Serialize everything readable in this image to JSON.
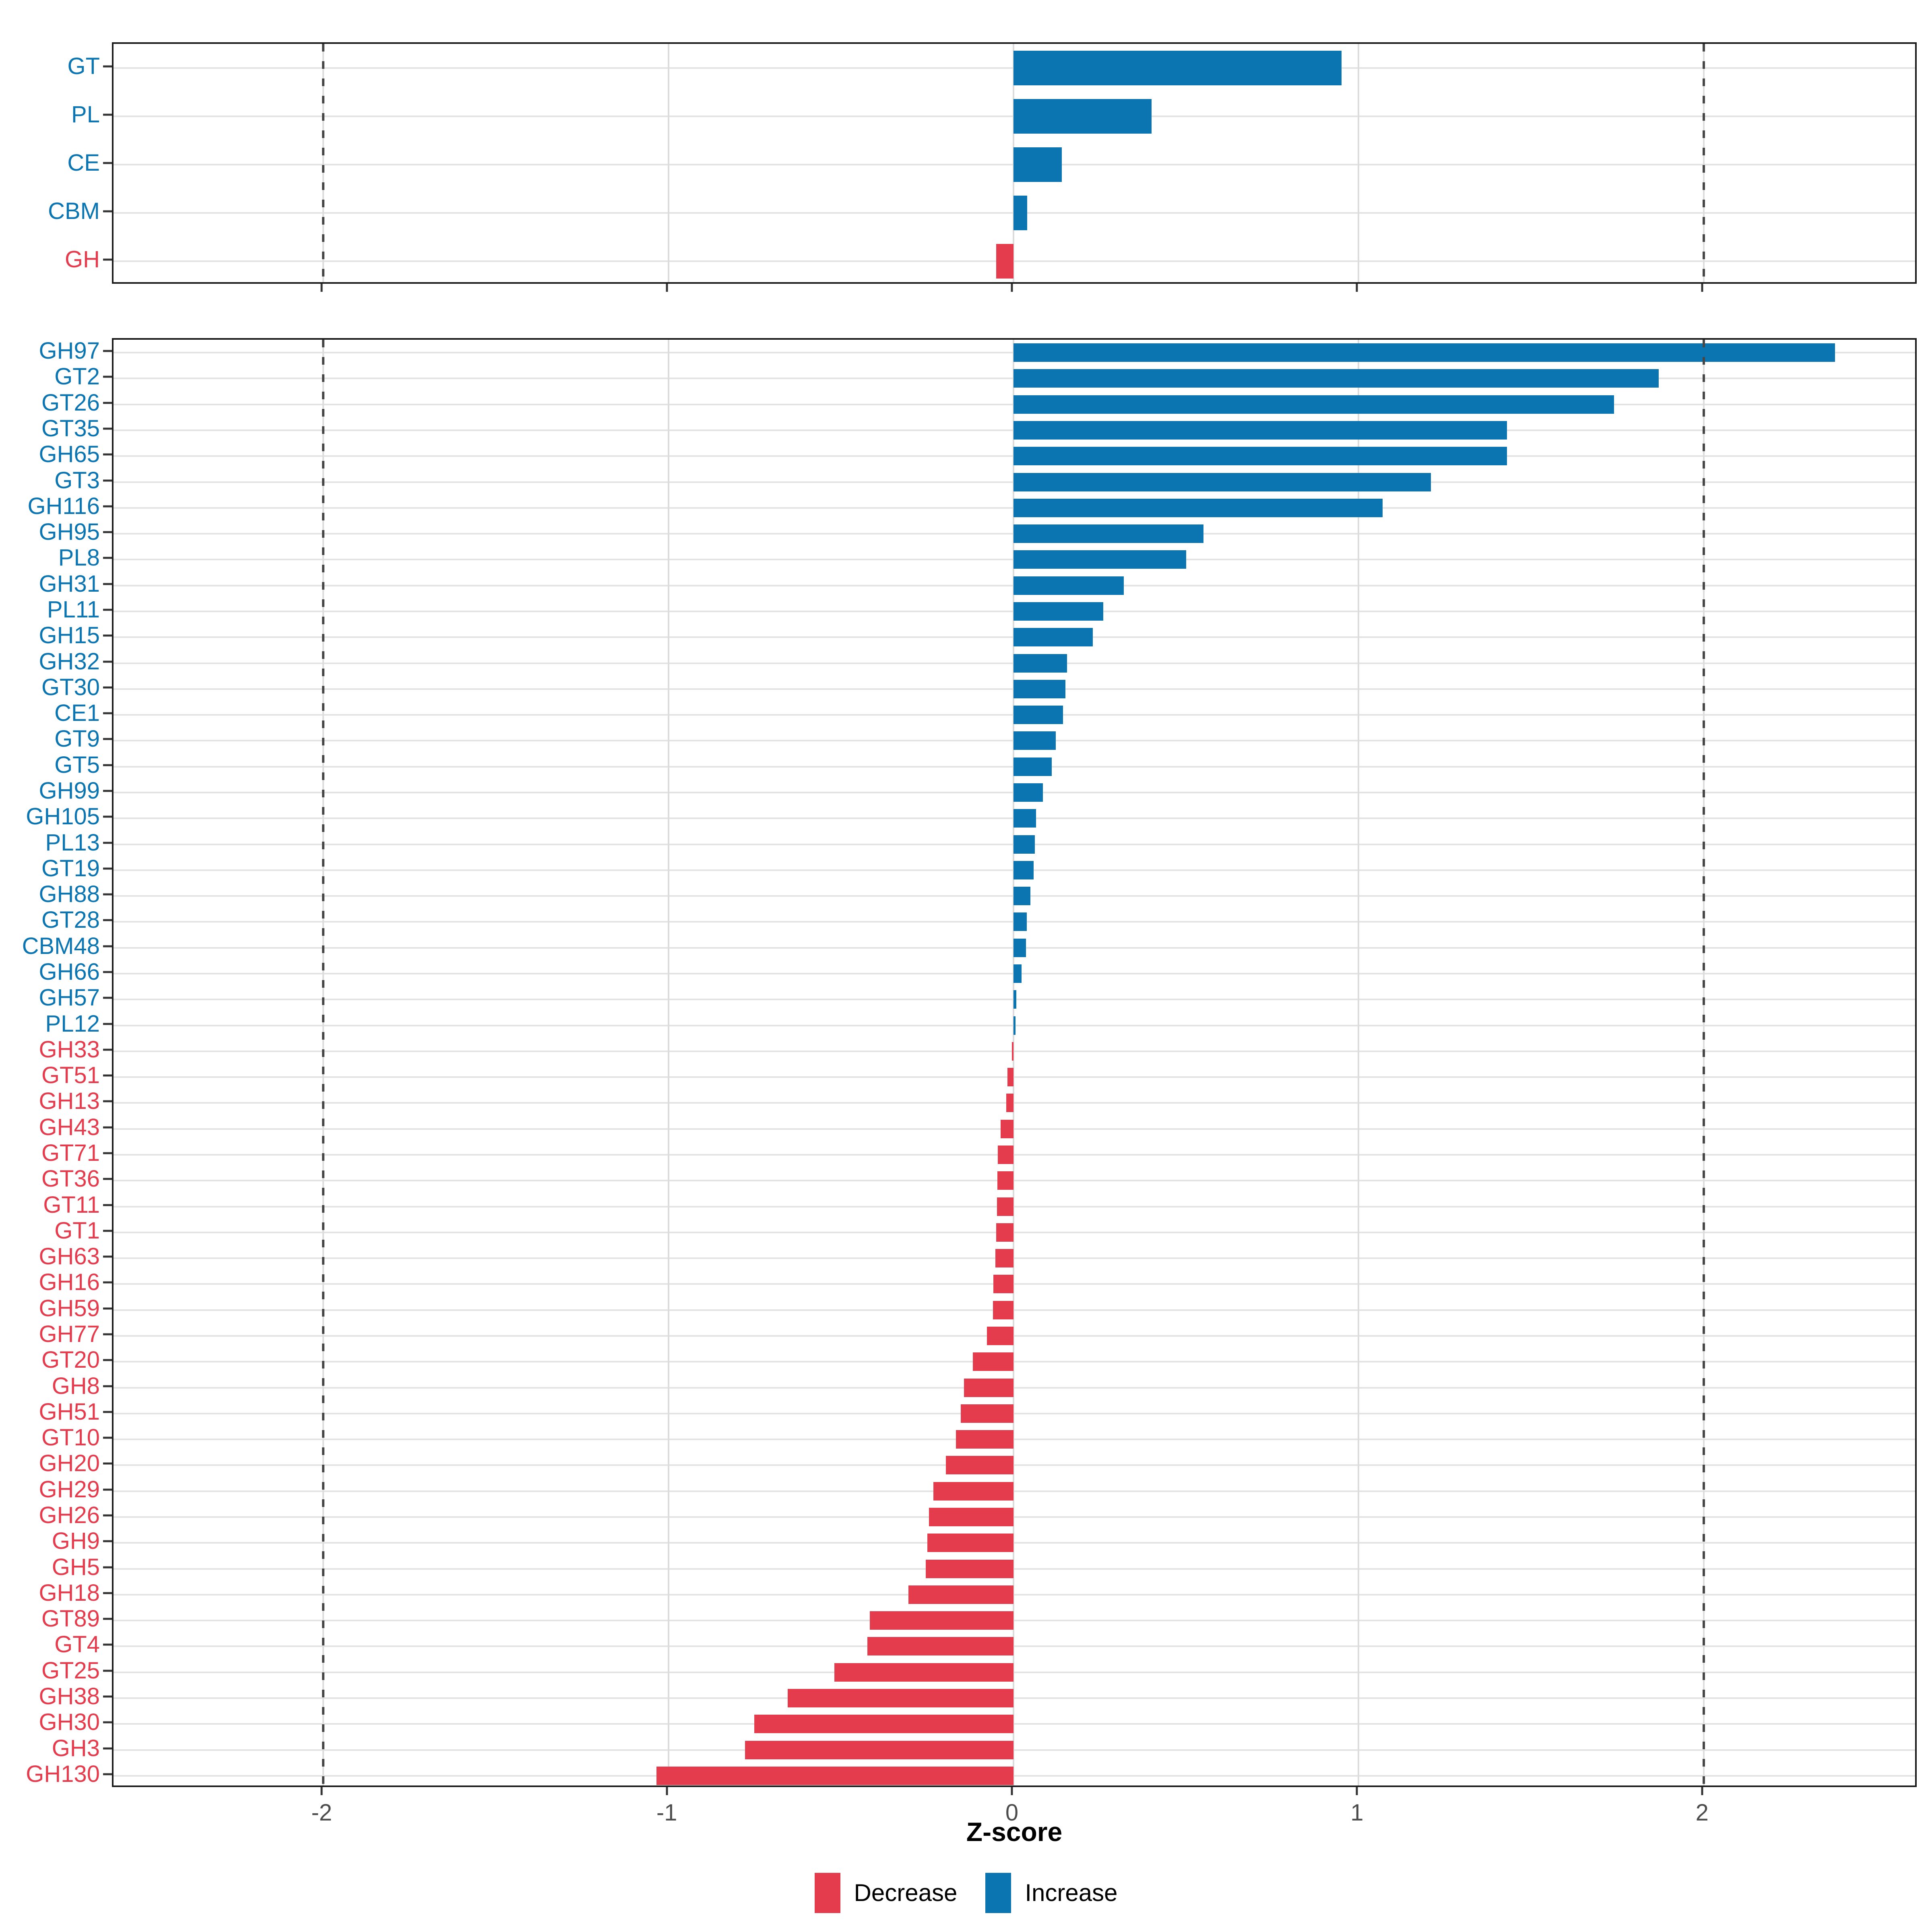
{
  "chart_data": {
    "type": "bar",
    "orientation": "horizontal",
    "xlabel": "Z-score",
    "x_ticks": [
      -2,
      -1,
      0,
      1,
      2
    ],
    "xlim": [
      -2.608,
      2.622
    ],
    "dashed_lines_x": [
      -2,
      2
    ],
    "grid": "major-only",
    "legend_position": "bottom",
    "colors": {
      "increase": "#0B75B2",
      "decrease": "#E43B4D",
      "tick_label": "#4D4D4D",
      "dashed_line": "#474747",
      "grid_horizontal": "#E3E3E3",
      "grid_vertical": "#DCDCDC",
      "panel_border": "#1A1A1A"
    },
    "legend": [
      {
        "label": "Decrease",
        "key": "decrease"
      },
      {
        "label": "Increase",
        "key": "increase"
      }
    ],
    "panels": [
      {
        "name": "cazyme-class-summary",
        "rows": [
          {
            "label": "GT",
            "value": 0.95
          },
          {
            "label": "PL",
            "value": 0.4
          },
          {
            "label": "CE",
            "value": 0.14
          },
          {
            "label": "CBM",
            "value": 0.04
          },
          {
            "label": "GH",
            "value": -0.05
          }
        ]
      },
      {
        "name": "cazyme-family-detail",
        "rows": [
          {
            "label": "GH97",
            "value": 2.38
          },
          {
            "label": "GT2",
            "value": 1.87
          },
          {
            "label": "GT26",
            "value": 1.74
          },
          {
            "label": "GT35",
            "value": 1.43
          },
          {
            "label": "GH65",
            "value": 1.43
          },
          {
            "label": "GT3",
            "value": 1.21
          },
          {
            "label": "GH116",
            "value": 1.07
          },
          {
            "label": "GH95",
            "value": 0.55
          },
          {
            "label": "PL8",
            "value": 0.5
          },
          {
            "label": "GH31",
            "value": 0.32
          },
          {
            "label": "PL11",
            "value": 0.26
          },
          {
            "label": "GH15",
            "value": 0.23
          },
          {
            "label": "GH32",
            "value": 0.155
          },
          {
            "label": "GT30",
            "value": 0.15
          },
          {
            "label": "CE1",
            "value": 0.143
          },
          {
            "label": "GT9",
            "value": 0.122
          },
          {
            "label": "GT5",
            "value": 0.111
          },
          {
            "label": "GH99",
            "value": 0.085
          },
          {
            "label": "GH105",
            "value": 0.065
          },
          {
            "label": "PL13",
            "value": 0.062
          },
          {
            "label": "GT19",
            "value": 0.058
          },
          {
            "label": "GH88",
            "value": 0.049
          },
          {
            "label": "GT28",
            "value": 0.038
          },
          {
            "label": "CBM48",
            "value": 0.036
          },
          {
            "label": "GH66",
            "value": 0.023
          },
          {
            "label": "GH57",
            "value": 0.008
          },
          {
            "label": "PL12",
            "value": 0.006
          },
          {
            "label": "GH33",
            "value": -0.005
          },
          {
            "label": "GT51",
            "value": -0.017
          },
          {
            "label": "GH13",
            "value": -0.021
          },
          {
            "label": "GH43",
            "value": -0.037
          },
          {
            "label": "GT71",
            "value": -0.045
          },
          {
            "label": "GT36",
            "value": -0.047
          },
          {
            "label": "GT11",
            "value": -0.048
          },
          {
            "label": "GT1",
            "value": -0.05
          },
          {
            "label": "GH63",
            "value": -0.052
          },
          {
            "label": "GH16",
            "value": -0.058
          },
          {
            "label": "GH59",
            "value": -0.06
          },
          {
            "label": "GH77",
            "value": -0.077
          },
          {
            "label": "GT20",
            "value": -0.118
          },
          {
            "label": "GH8",
            "value": -0.143
          },
          {
            "label": "GH51",
            "value": -0.153
          },
          {
            "label": "GT10",
            "value": -0.167
          },
          {
            "label": "GH20",
            "value": -0.196
          },
          {
            "label": "GH29",
            "value": -0.232
          },
          {
            "label": "GH26",
            "value": -0.245
          },
          {
            "label": "GH9",
            "value": -0.25
          },
          {
            "label": "GH5",
            "value": -0.254
          },
          {
            "label": "GH18",
            "value": -0.304
          },
          {
            "label": "GT89",
            "value": -0.417
          },
          {
            "label": "GT4",
            "value": -0.423
          },
          {
            "label": "GT25",
            "value": -0.519
          },
          {
            "label": "GH38",
            "value": -0.654
          },
          {
            "label": "GH30",
            "value": -0.751
          },
          {
            "label": "GH3",
            "value": -0.778
          },
          {
            "label": "GH130",
            "value": -1.035
          }
        ]
      }
    ]
  }
}
